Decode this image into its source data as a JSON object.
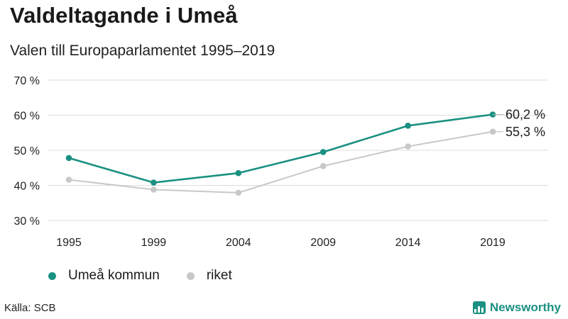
{
  "header": {
    "title": "Valdeltagande i Umeå",
    "subtitle": "Valen till Europaparlamentet 1995–2019"
  },
  "chart_data": {
    "type": "line",
    "x": [
      "1995",
      "1999",
      "2004",
      "2009",
      "2014",
      "2019"
    ],
    "y_ticks": [
      "30 %",
      "40 %",
      "50 %",
      "60 %",
      "70 %"
    ],
    "ylim": [
      30,
      70
    ],
    "grid": true,
    "legend_placement": "bottom-left",
    "series": [
      {
        "name": "Umeå kommun",
        "color": "#1a9081",
        "values": [
          47.8,
          40.8,
          43.5,
          49.5,
          57.0,
          60.2
        ],
        "end_label": "60,2 %"
      },
      {
        "name": "riket",
        "color": "#c8c8c8",
        "values": [
          41.6,
          38.8,
          37.9,
          45.5,
          51.1,
          55.3
        ],
        "end_label": "55,3 %"
      }
    ]
  },
  "footer": {
    "source": "Källa: SCB",
    "brand": "Newsworthy",
    "brand_color": "#1a9081"
  }
}
